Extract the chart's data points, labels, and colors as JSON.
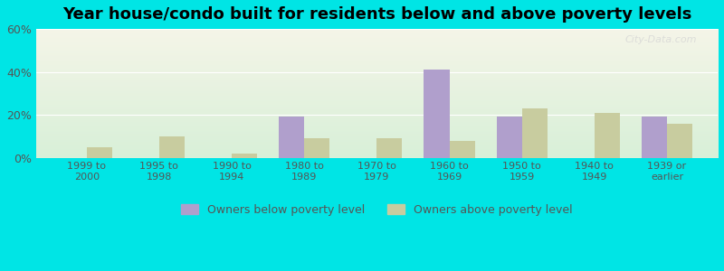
{
  "title": "Year house/condo built for residents below and above poverty levels",
  "categories": [
    "1999 to\n2000",
    "1995 to\n1998",
    "1990 to\n1994",
    "1980 to\n1989",
    "1970 to\n1979",
    "1960 to\n1969",
    "1950 to\n1959",
    "1940 to\n1949",
    "1939 or\nearlier"
  ],
  "below_poverty": [
    0,
    0,
    0,
    19,
    0,
    41,
    19,
    0,
    19
  ],
  "above_poverty": [
    5,
    10,
    2,
    9,
    9,
    8,
    23,
    21,
    16
  ],
  "below_color": "#b09fcc",
  "above_color": "#c8cc9f",
  "ylim": [
    0,
    60
  ],
  "yticks": [
    0,
    20,
    40,
    60
  ],
  "ytick_labels": [
    "0%",
    "20%",
    "40%",
    "60%"
  ],
  "legend_below": "Owners below poverty level",
  "legend_above": "Owners above poverty level",
  "outer_bg": "#00e5e5",
  "bar_width": 0.35,
  "title_fontsize": 13
}
